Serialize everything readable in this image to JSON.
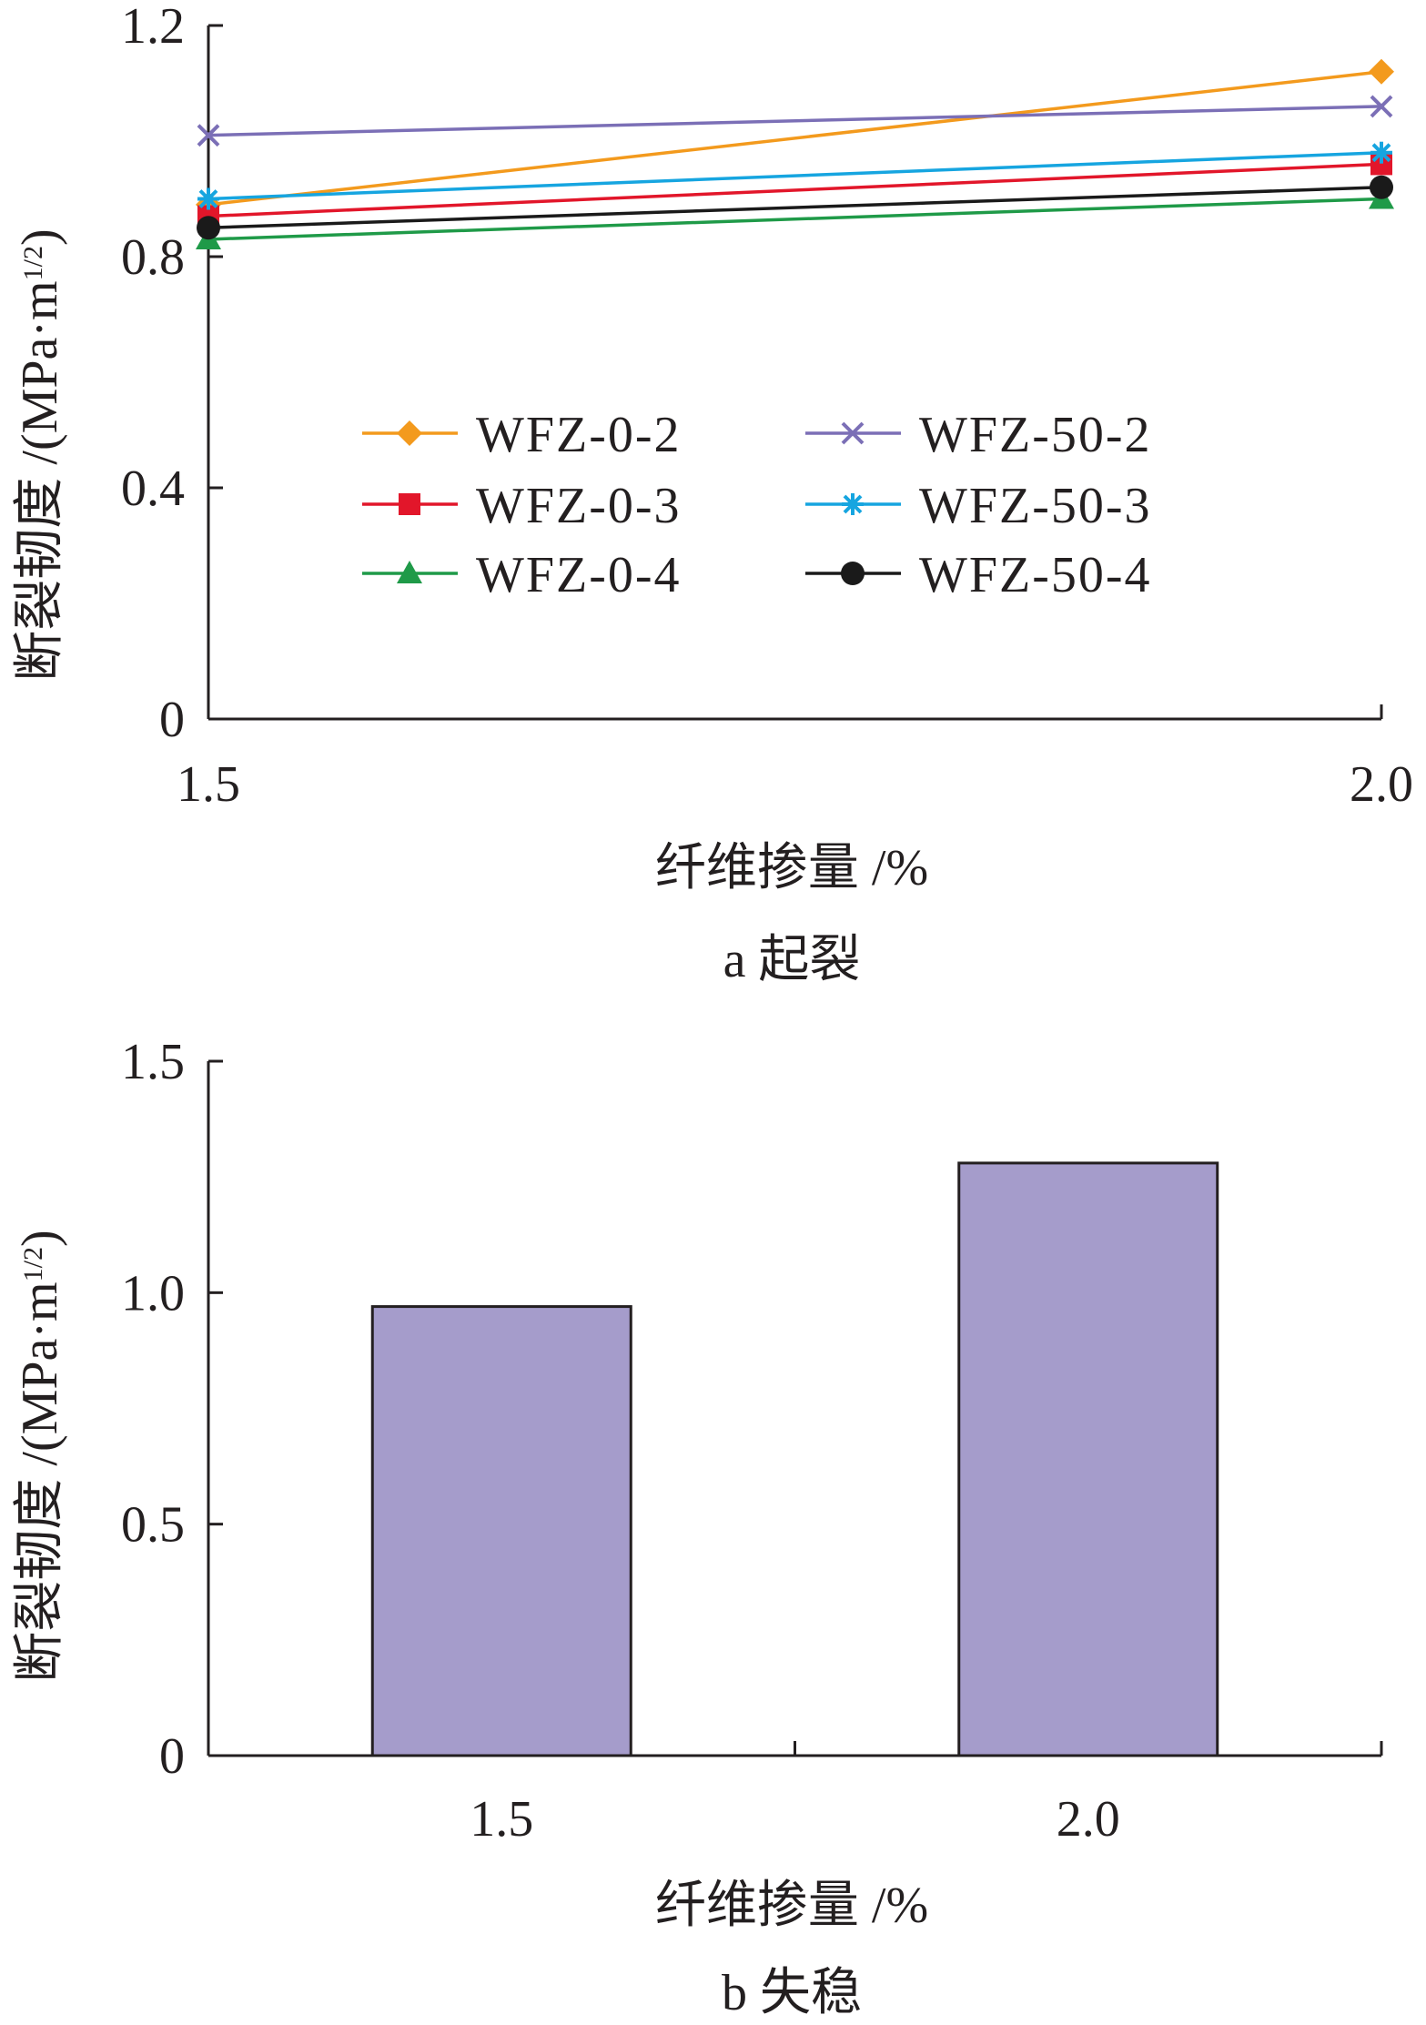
{
  "chart_data": [
    {
      "type": "line",
      "caption": "a 起裂",
      "xlabel": "纤维掺量 /%",
      "ylabel": "断裂韧度 /(MPa·m",
      "ylabel_sup": "1/2",
      "ylabel_close": ")",
      "x": [
        1.5,
        2.0
      ],
      "x_ticks": [
        "1.5",
        "2.0"
      ],
      "y_ticks": [
        "0",
        "0.4",
        "0.8",
        "1.2"
      ],
      "ylim": [
        0,
        1.2
      ],
      "grid": false,
      "legend_position": "center",
      "series": [
        {
          "name": "WFZ-0-2",
          "values": [
            0.89,
            1.12
          ],
          "color": "#f39a1d",
          "marker": "diamond"
        },
        {
          "name": "WFZ-0-3",
          "values": [
            0.87,
            0.96
          ],
          "color": "#e2162a",
          "marker": "square"
        },
        {
          "name": "WFZ-0-4",
          "values": [
            0.83,
            0.9
          ],
          "color": "#1f9a48",
          "marker": "triangle"
        },
        {
          "name": "WFZ-50-2",
          "values": [
            1.01,
            1.06
          ],
          "color": "#7b6fb6",
          "marker": "x"
        },
        {
          "name": "WFZ-50-3",
          "values": [
            0.9,
            0.98
          ],
          "color": "#16a5e0",
          "marker": "asterisk"
        },
        {
          "name": "WFZ-50-4",
          "values": [
            0.85,
            0.92
          ],
          "color": "#1a1a1a",
          "marker": "circle"
        }
      ]
    },
    {
      "type": "bar",
      "caption": "b 失稳",
      "xlabel": "纤维掺量 /%",
      "ylabel": "断裂韧度 /(MPa·m",
      "ylabel_sup": "1/2",
      "ylabel_close": ")",
      "categories": [
        "1.5",
        "2.0"
      ],
      "values": [
        0.97,
        1.28
      ],
      "y_ticks": [
        "0",
        "0.5",
        "1.0",
        "1.5"
      ],
      "ylim": [
        0,
        1.5
      ],
      "grid": false,
      "bar_color": "#a59ccb"
    }
  ]
}
